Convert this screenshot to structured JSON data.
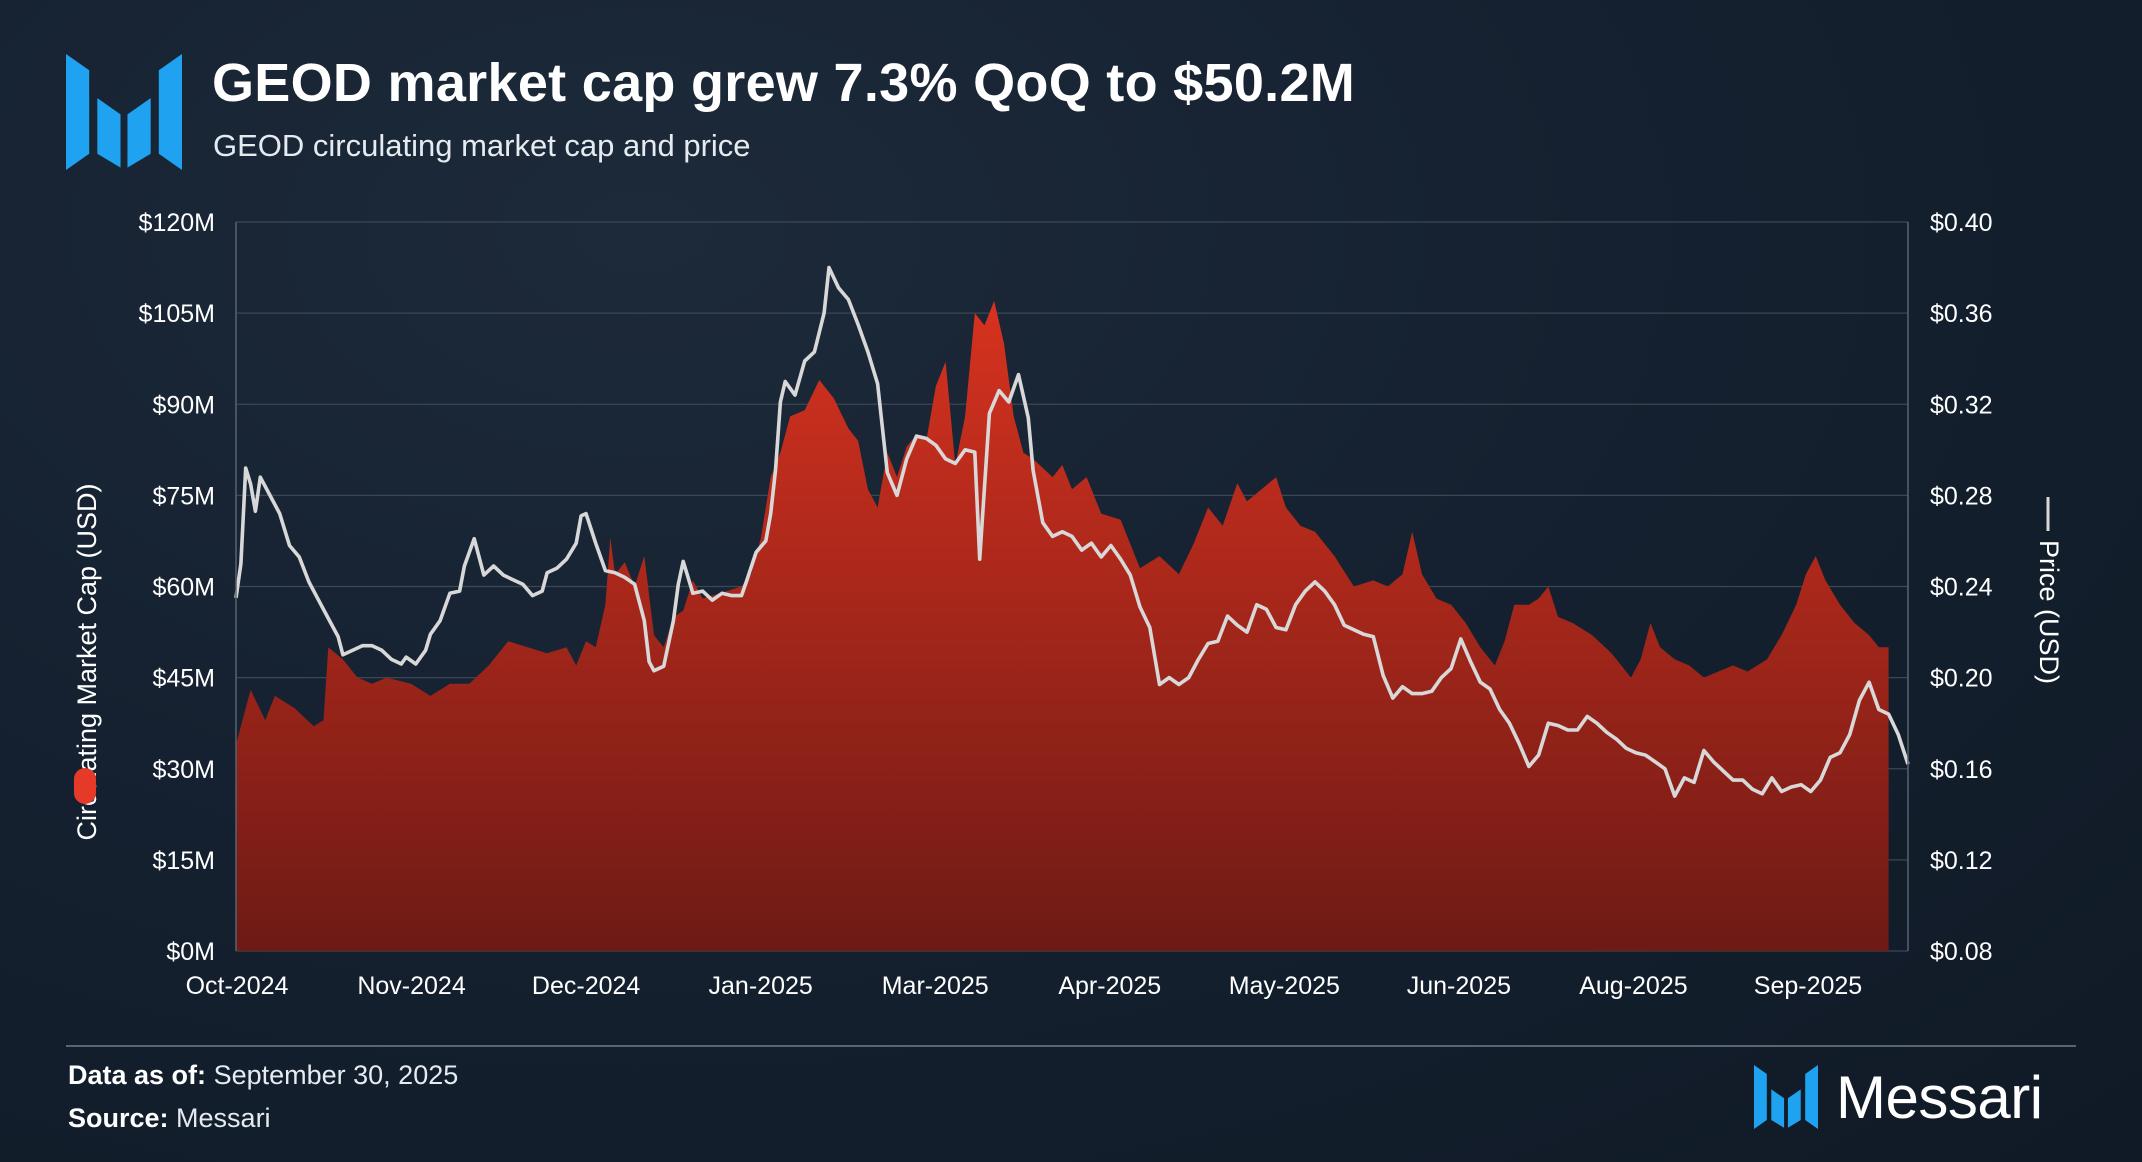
{
  "header": {
    "title": "GEOD market cap grew 7.3% QoQ to $50.2M",
    "subtitle": "GEOD circulating market cap and price"
  },
  "footer": {
    "data_as_of_label": "Data as of:",
    "data_as_of_value": "September 30, 2025",
    "source_label": "Source:",
    "source_value": "Messari",
    "brand_name": "Messari"
  },
  "colors": {
    "brand_blue": "#1fa3f0",
    "market_cap_red": "#d7321f",
    "price_line": "#d8d8d8",
    "grid": "#3d4753"
  },
  "chart_data": {
    "type": "area",
    "title": "GEOD circulating market cap and price",
    "xlabel": "",
    "ylabel": "Circulating Market Cap (USD)",
    "y2label": "Price (USD)",
    "categories": [
      "Oct-2024",
      "Nov-2024",
      "Dec-2024",
      "Jan-2025",
      "Mar-2025",
      "Apr-2025",
      "May-2025",
      "Jun-2025",
      "Aug-2025",
      "Sep-2025"
    ],
    "ylim": [
      0,
      120
    ],
    "y2lim": [
      0.08,
      0.4
    ],
    "y_ticks": [
      "$0M",
      "$15M",
      "$30M",
      "$45M",
      "$60M",
      "$75M",
      "$90M",
      "$105M",
      "$120M"
    ],
    "y2_ticks": [
      "$0.08",
      "$0.12",
      "$0.16",
      "$0.20",
      "$0.24",
      "$0.28",
      "$0.32",
      "$0.36",
      "$0.40"
    ],
    "grid": true,
    "series": [
      {
        "name": "Circulating Market Cap (USD)",
        "axis": "left",
        "unit": "USD millions",
        "type": "area",
        "points": [
          [
            0,
            34
          ],
          [
            3,
            43
          ],
          [
            6,
            38
          ],
          [
            8,
            42
          ],
          [
            12,
            40
          ],
          [
            16,
            37
          ],
          [
            18,
            38
          ],
          [
            19,
            50
          ],
          [
            22,
            48
          ],
          [
            25,
            45
          ],
          [
            28,
            44
          ],
          [
            31,
            45
          ],
          [
            36,
            44
          ],
          [
            40,
            42
          ],
          [
            44,
            44
          ],
          [
            48,
            44
          ],
          [
            52,
            47
          ],
          [
            56,
            51
          ],
          [
            60,
            50
          ],
          [
            64,
            49
          ],
          [
            68,
            50
          ],
          [
            70,
            47
          ],
          [
            72,
            51
          ],
          [
            74,
            50
          ],
          [
            76,
            57
          ],
          [
            77,
            68
          ],
          [
            78,
            62
          ],
          [
            80,
            64
          ],
          [
            82,
            60
          ],
          [
            84,
            65
          ],
          [
            86,
            52
          ],
          [
            88,
            50
          ],
          [
            90,
            55
          ],
          [
            92,
            56
          ],
          [
            94,
            61
          ],
          [
            96,
            58
          ],
          [
            100,
            59
          ],
          [
            104,
            60
          ],
          [
            106,
            62
          ],
          [
            108,
            68
          ],
          [
            110,
            78
          ],
          [
            112,
            82
          ],
          [
            114,
            88
          ],
          [
            117,
            89
          ],
          [
            120,
            94
          ],
          [
            123,
            91
          ],
          [
            126,
            86
          ],
          [
            128,
            84
          ],
          [
            130,
            76
          ],
          [
            132,
            73
          ],
          [
            134,
            82
          ],
          [
            136,
            78
          ],
          [
            138,
            83
          ],
          [
            140,
            85
          ],
          [
            142,
            84
          ],
          [
            144,
            93
          ],
          [
            146,
            97
          ],
          [
            148,
            80
          ],
          [
            150,
            88
          ],
          [
            152,
            105
          ],
          [
            154,
            103
          ],
          [
            156,
            107
          ],
          [
            158,
            100
          ],
          [
            160,
            88
          ],
          [
            162,
            82
          ],
          [
            164,
            81
          ],
          [
            168,
            78
          ],
          [
            170,
            80
          ],
          [
            172,
            76
          ],
          [
            175,
            78
          ],
          [
            178,
            72
          ],
          [
            182,
            71
          ],
          [
            186,
            63
          ],
          [
            190,
            65
          ],
          [
            194,
            62
          ],
          [
            197,
            67
          ],
          [
            200,
            73
          ],
          [
            203,
            70
          ],
          [
            206,
            77
          ],
          [
            208,
            74
          ],
          [
            211,
            76
          ],
          [
            214,
            78
          ],
          [
            216,
            73
          ],
          [
            219,
            70
          ],
          [
            222,
            69
          ],
          [
            226,
            65
          ],
          [
            230,
            60
          ],
          [
            234,
            61
          ],
          [
            237,
            60
          ],
          [
            240,
            62
          ],
          [
            242,
            69
          ],
          [
            244,
            62
          ],
          [
            247,
            58
          ],
          [
            250,
            57
          ],
          [
            253,
            54
          ],
          [
            256,
            50
          ],
          [
            259,
            47
          ],
          [
            261,
            51
          ],
          [
            263,
            57
          ],
          [
            266,
            57
          ],
          [
            268,
            58
          ],
          [
            270,
            60
          ],
          [
            272,
            55
          ],
          [
            275,
            54
          ],
          [
            279,
            52
          ],
          [
            283,
            49
          ],
          [
            287,
            45
          ],
          [
            289,
            48
          ],
          [
            291,
            54
          ],
          [
            293,
            50
          ],
          [
            296,
            48
          ],
          [
            299,
            47
          ],
          [
            302,
            45
          ],
          [
            305,
            46
          ],
          [
            308,
            47
          ],
          [
            311,
            46
          ],
          [
            315,
            48
          ],
          [
            318,
            52
          ],
          [
            321,
            57
          ],
          [
            323,
            62
          ],
          [
            325,
            65
          ],
          [
            327,
            61
          ],
          [
            330,
            57
          ],
          [
            333,
            54
          ],
          [
            336,
            52
          ],
          [
            338,
            50
          ],
          [
            340,
            50
          ]
        ]
      },
      {
        "name": "Price (USD)",
        "axis": "right",
        "unit": "USD",
        "type": "line",
        "points": [
          [
            0,
            0.235
          ],
          [
            1,
            0.25
          ],
          [
            2,
            0.292
          ],
          [
            3,
            0.285
          ],
          [
            4,
            0.273
          ],
          [
            5,
            0.288
          ],
          [
            7,
            0.28
          ],
          [
            9,
            0.272
          ],
          [
            11,
            0.258
          ],
          [
            13,
            0.253
          ],
          [
            15,
            0.242
          ],
          [
            17,
            0.234
          ],
          [
            19,
            0.226
          ],
          [
            21,
            0.218
          ],
          [
            22,
            0.21
          ],
          [
            24,
            0.212
          ],
          [
            26,
            0.214
          ],
          [
            28,
            0.214
          ],
          [
            30,
            0.212
          ],
          [
            32,
            0.208
          ],
          [
            34,
            0.206
          ],
          [
            35,
            0.209
          ],
          [
            37,
            0.206
          ],
          [
            39,
            0.212
          ],
          [
            40,
            0.219
          ],
          [
            42,
            0.225
          ],
          [
            44,
            0.237
          ],
          [
            46,
            0.238
          ],
          [
            47,
            0.249
          ],
          [
            49,
            0.261
          ],
          [
            51,
            0.245
          ],
          [
            53,
            0.249
          ],
          [
            55,
            0.245
          ],
          [
            57,
            0.243
          ],
          [
            59,
            0.241
          ],
          [
            61,
            0.236
          ],
          [
            63,
            0.238
          ],
          [
            64,
            0.246
          ],
          [
            66,
            0.248
          ],
          [
            68,
            0.252
          ],
          [
            70,
            0.259
          ],
          [
            71,
            0.271
          ],
          [
            72,
            0.272
          ],
          [
            74,
            0.259
          ],
          [
            76,
            0.247
          ],
          [
            78,
            0.246
          ],
          [
            80,
            0.244
          ],
          [
            82,
            0.241
          ],
          [
            84,
            0.225
          ],
          [
            85,
            0.207
          ],
          [
            86,
            0.203
          ],
          [
            88,
            0.205
          ],
          [
            90,
            0.225
          ],
          [
            91,
            0.241
          ],
          [
            92,
            0.251
          ],
          [
            94,
            0.237
          ],
          [
            96,
            0.238
          ],
          [
            98,
            0.234
          ],
          [
            100,
            0.237
          ],
          [
            102,
            0.236
          ],
          [
            104,
            0.236
          ],
          [
            105,
            0.242
          ],
          [
            107,
            0.255
          ],
          [
            109,
            0.26
          ],
          [
            110,
            0.272
          ],
          [
            111,
            0.291
          ],
          [
            112,
            0.321
          ],
          [
            113,
            0.33
          ],
          [
            115,
            0.324
          ],
          [
            117,
            0.339
          ],
          [
            119,
            0.343
          ],
          [
            121,
            0.36
          ],
          [
            122,
            0.38
          ],
          [
            124,
            0.371
          ],
          [
            126,
            0.366
          ],
          [
            128,
            0.355
          ],
          [
            130,
            0.343
          ],
          [
            132,
            0.329
          ],
          [
            134,
            0.29
          ],
          [
            136,
            0.28
          ],
          [
            138,
            0.296
          ],
          [
            140,
            0.306
          ],
          [
            142,
            0.305
          ],
          [
            144,
            0.302
          ],
          [
            146,
            0.296
          ],
          [
            148,
            0.294
          ],
          [
            150,
            0.3
          ],
          [
            152,
            0.299
          ],
          [
            153,
            0.252
          ],
          [
            155,
            0.316
          ],
          [
            157,
            0.326
          ],
          [
            159,
            0.321
          ],
          [
            161,
            0.333
          ],
          [
            163,
            0.314
          ],
          [
            164,
            0.291
          ],
          [
            166,
            0.268
          ],
          [
            168,
            0.262
          ],
          [
            170,
            0.264
          ],
          [
            172,
            0.262
          ],
          [
            174,
            0.256
          ],
          [
            176,
            0.259
          ],
          [
            178,
            0.253
          ],
          [
            180,
            0.258
          ],
          [
            182,
            0.252
          ],
          [
            184,
            0.245
          ],
          [
            186,
            0.231
          ],
          [
            188,
            0.222
          ],
          [
            190,
            0.197
          ],
          [
            192,
            0.2
          ],
          [
            194,
            0.197
          ],
          [
            196,
            0.2
          ],
          [
            198,
            0.208
          ],
          [
            200,
            0.215
          ],
          [
            202,
            0.216
          ],
          [
            204,
            0.227
          ],
          [
            206,
            0.223
          ],
          [
            208,
            0.22
          ],
          [
            210,
            0.232
          ],
          [
            212,
            0.23
          ],
          [
            214,
            0.222
          ],
          [
            216,
            0.221
          ],
          [
            218,
            0.232
          ],
          [
            220,
            0.238
          ],
          [
            222,
            0.242
          ],
          [
            224,
            0.238
          ],
          [
            226,
            0.232
          ],
          [
            228,
            0.223
          ],
          [
            230,
            0.221
          ],
          [
            232,
            0.219
          ],
          [
            234,
            0.218
          ],
          [
            236,
            0.201
          ],
          [
            238,
            0.191
          ],
          [
            240,
            0.196
          ],
          [
            242,
            0.193
          ],
          [
            244,
            0.193
          ],
          [
            246,
            0.194
          ],
          [
            248,
            0.2
          ],
          [
            250,
            0.204
          ],
          [
            252,
            0.217
          ],
          [
            254,
            0.207
          ],
          [
            256,
            0.198
          ],
          [
            258,
            0.195
          ],
          [
            260,
            0.186
          ],
          [
            262,
            0.18
          ],
          [
            264,
            0.171
          ],
          [
            266,
            0.161
          ],
          [
            268,
            0.166
          ],
          [
            270,
            0.18
          ],
          [
            272,
            0.179
          ],
          [
            274,
            0.177
          ],
          [
            276,
            0.177
          ],
          [
            278,
            0.183
          ],
          [
            280,
            0.18
          ],
          [
            282,
            0.176
          ],
          [
            284,
            0.173
          ],
          [
            286,
            0.169
          ],
          [
            288,
            0.167
          ],
          [
            290,
            0.166
          ],
          [
            292,
            0.163
          ],
          [
            294,
            0.16
          ],
          [
            296,
            0.148
          ],
          [
            298,
            0.156
          ],
          [
            300,
            0.154
          ],
          [
            302,
            0.168
          ],
          [
            304,
            0.163
          ],
          [
            306,
            0.159
          ],
          [
            308,
            0.155
          ],
          [
            310,
            0.155
          ],
          [
            312,
            0.151
          ],
          [
            314,
            0.149
          ],
          [
            316,
            0.156
          ],
          [
            318,
            0.15
          ],
          [
            320,
            0.152
          ],
          [
            322,
            0.153
          ],
          [
            324,
            0.15
          ],
          [
            326,
            0.155
          ],
          [
            328,
            0.165
          ],
          [
            330,
            0.167
          ],
          [
            332,
            0.175
          ],
          [
            334,
            0.19
          ],
          [
            336,
            0.198
          ],
          [
            338,
            0.186
          ],
          [
            340,
            0.184
          ],
          [
            342,
            0.175
          ],
          [
            344,
            0.162
          ]
        ]
      }
    ]
  }
}
